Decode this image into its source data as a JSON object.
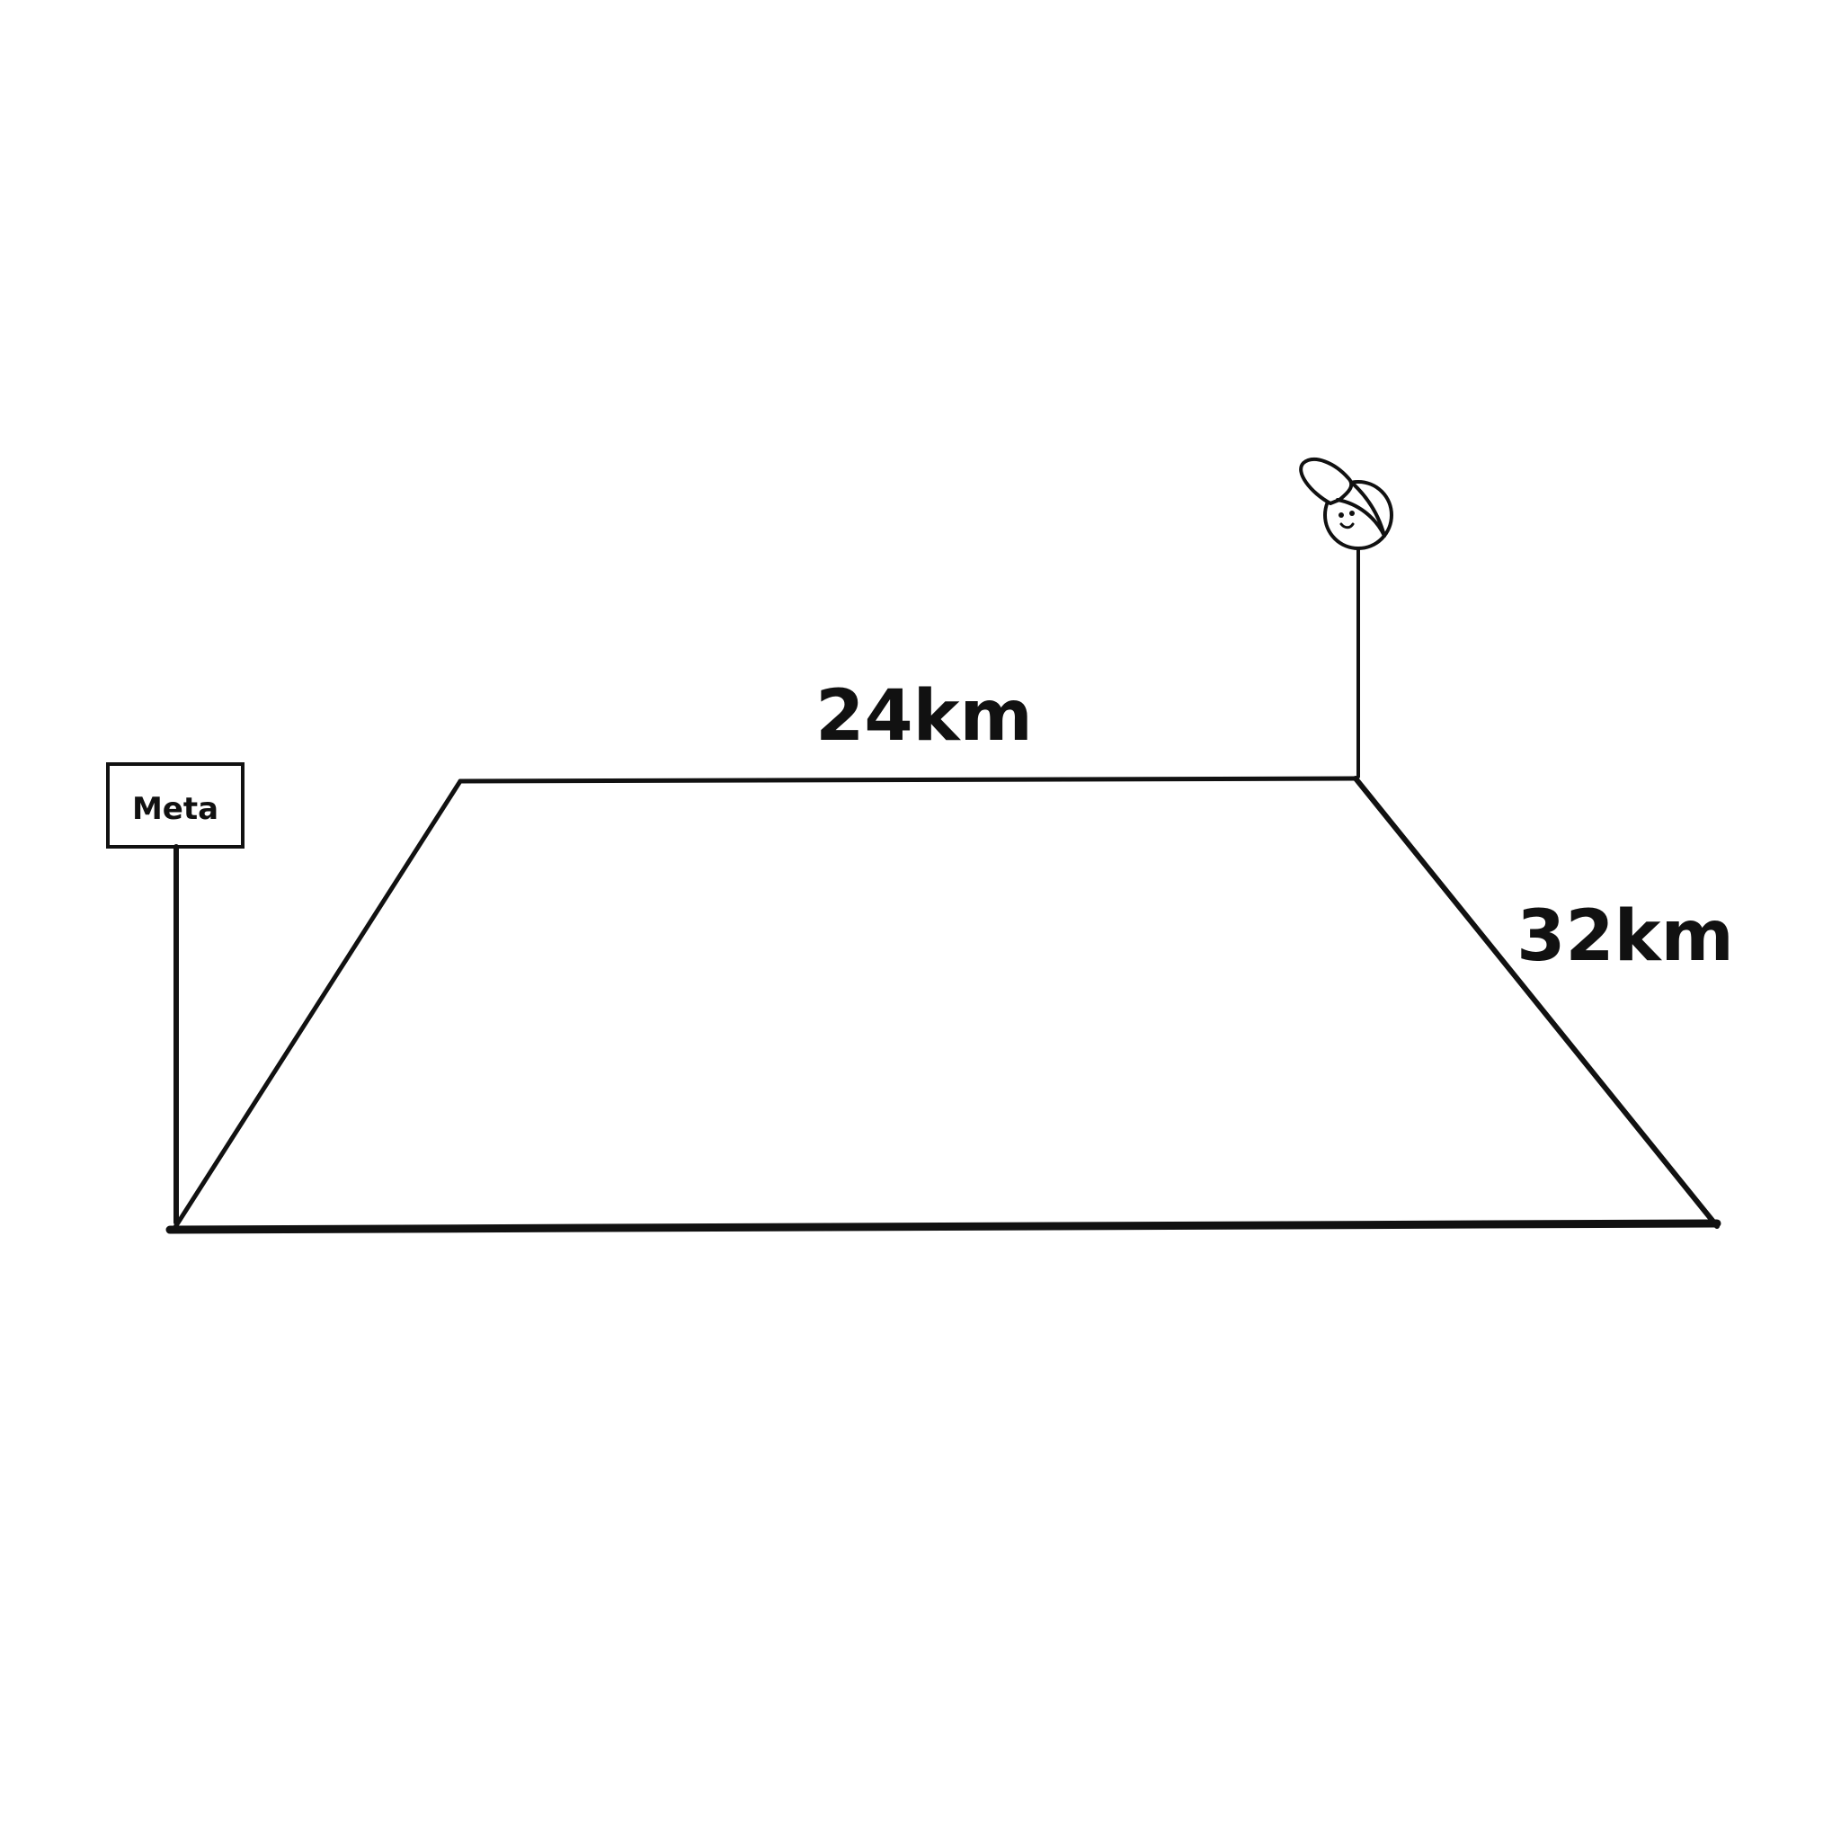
{
  "diagram": {
    "top_distance": "24km",
    "right_distance": "32km",
    "sign_text": "Meta"
  },
  "colors": {
    "stroke": "#111111",
    "background": "#ffffff"
  },
  "icons": {
    "person": "child-with-cap-icon",
    "finish_sign": "signpost-icon"
  }
}
